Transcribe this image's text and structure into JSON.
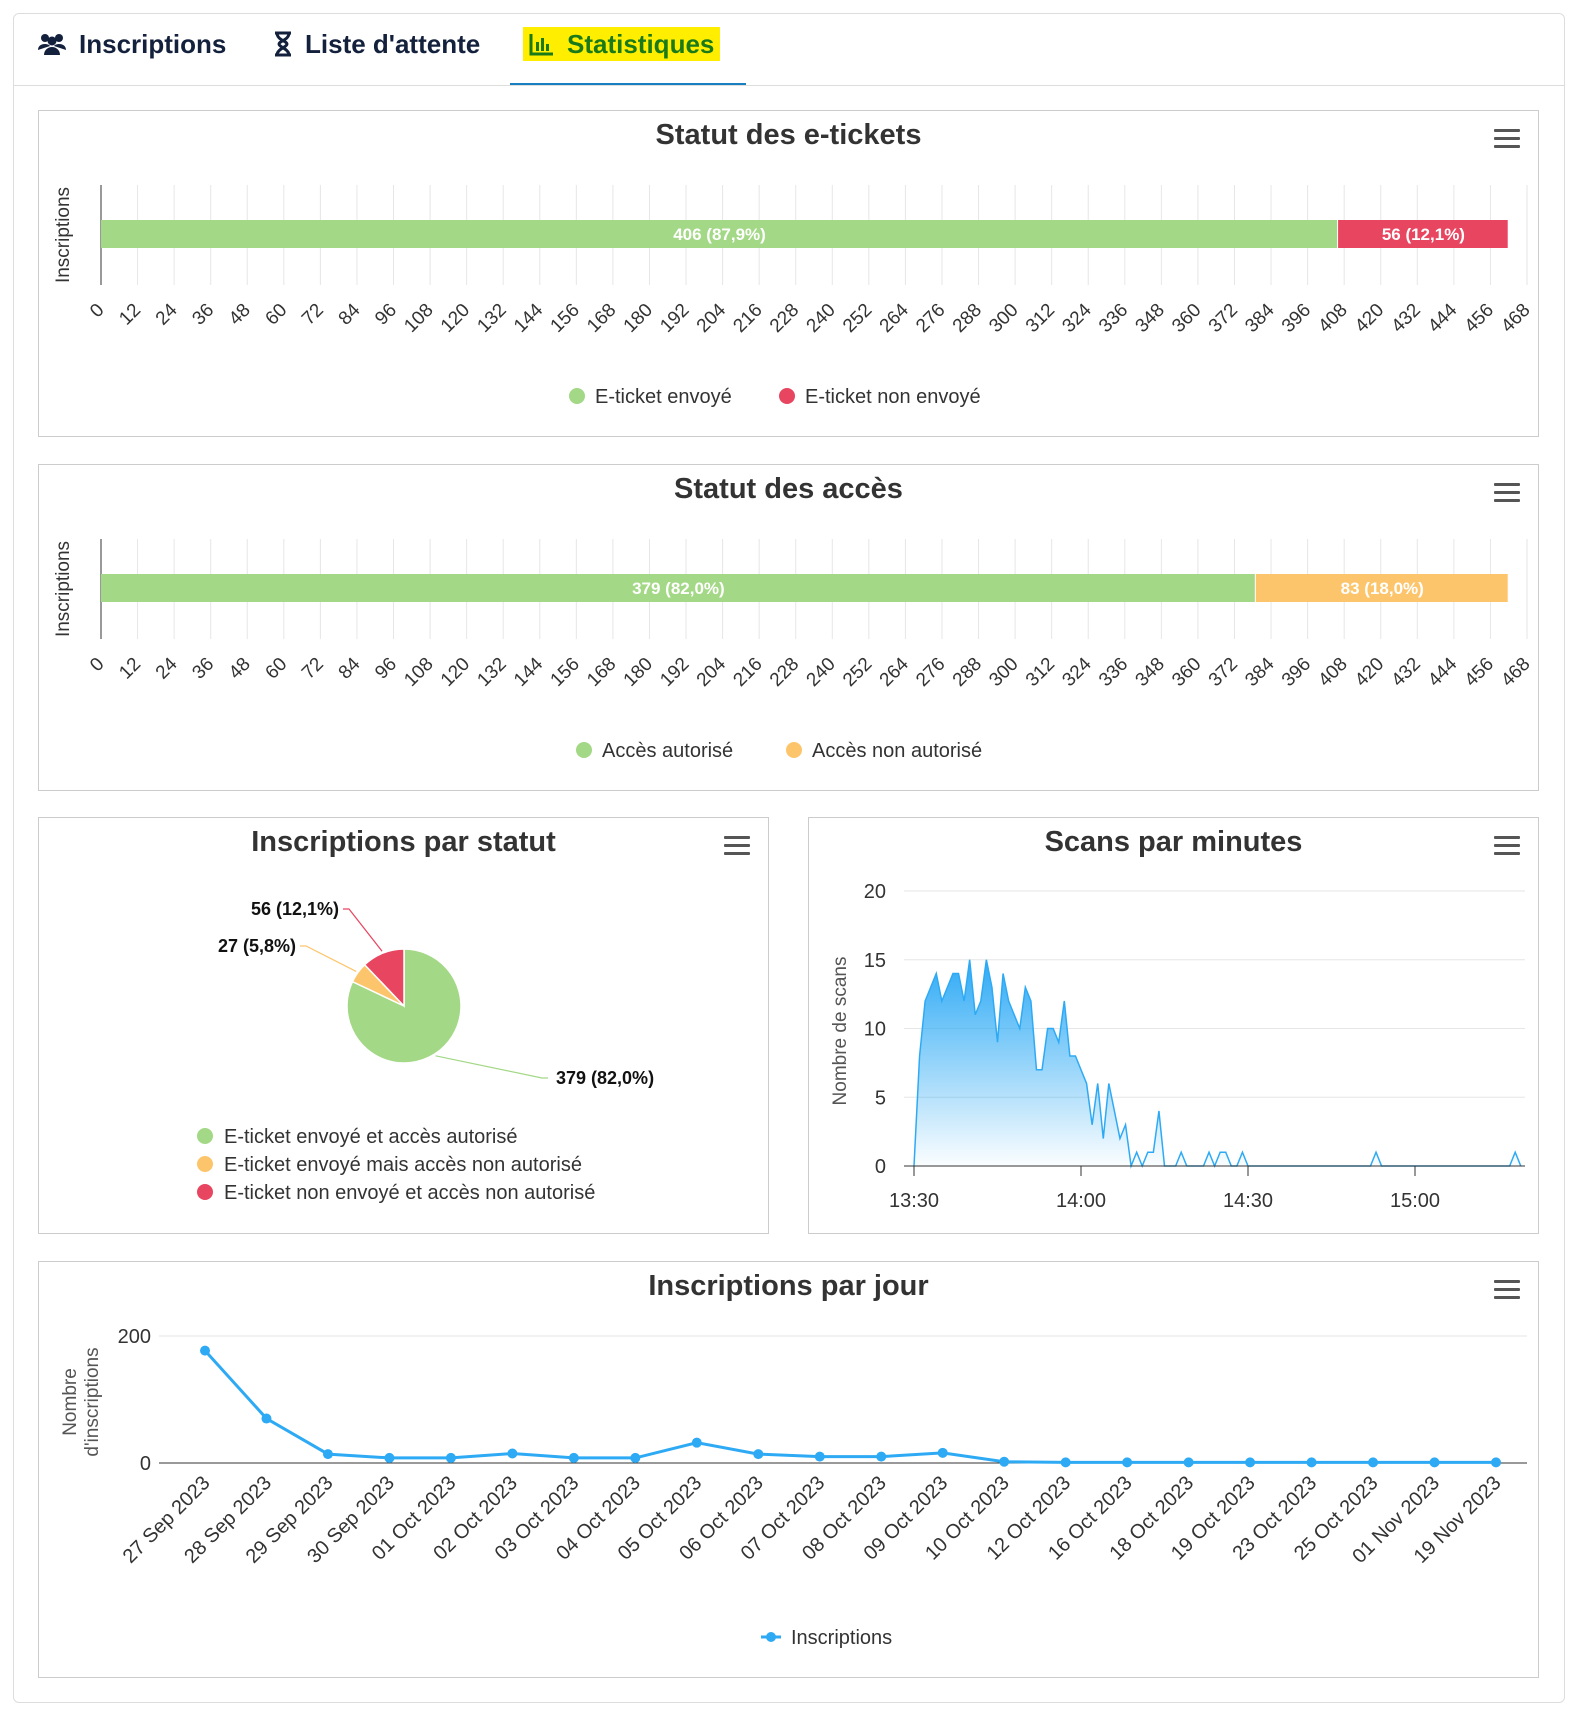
{
  "tabs": [
    {
      "label": "Inscriptions",
      "icon": "users-icon"
    },
    {
      "label": "Liste d'attente",
      "icon": "hourglass-icon"
    },
    {
      "label": "Statistiques",
      "icon": "bar-chart-icon",
      "active": true
    }
  ],
  "colors": {
    "green": "#a3d886",
    "red": "#e84560",
    "orange": "#fdc56b",
    "blue": "#2eaaf5"
  },
  "chart_data": [
    {
      "id": "etickets",
      "type": "bar",
      "orientation": "horizontal",
      "stacked": true,
      "title": "Statut des e-tickets",
      "ylabel": "Inscriptions",
      "xlim": [
        0,
        468
      ],
      "xstep": 12,
      "series": [
        {
          "name": "E-ticket envoyé",
          "value": 406,
          "label": "406 (87,9%)",
          "color": "#a3d886"
        },
        {
          "name": "E-ticket non envoyé",
          "value": 56,
          "label": "56 (12,1%)",
          "color": "#e84560"
        }
      ],
      "legend": "bottom"
    },
    {
      "id": "acces",
      "type": "bar",
      "orientation": "horizontal",
      "stacked": true,
      "title": "Statut des accès",
      "ylabel": "Inscriptions",
      "xlim": [
        0,
        468
      ],
      "xstep": 12,
      "series": [
        {
          "name": "Accès autorisé",
          "value": 379,
          "label": "379 (82,0%)",
          "color": "#a3d886"
        },
        {
          "name": "Accès non autorisé",
          "value": 83,
          "label": "83 (18,0%)",
          "color": "#fdc56b"
        }
      ],
      "legend": "bottom"
    },
    {
      "id": "statut",
      "type": "pie",
      "title": "Inscriptions par statut",
      "slices": [
        {
          "name": "E-ticket envoyé et accès autorisé",
          "value": 379,
          "label": "379 (82,0%)",
          "color": "#a3d886"
        },
        {
          "name": "E-ticket envoyé mais accès non autorisé",
          "value": 27,
          "label": "27 (5,8%)",
          "color": "#fdc56b"
        },
        {
          "name": "E-ticket non envoyé et accès non autorisé",
          "value": 56,
          "label": "56 (12,1%)",
          "color": "#e84560"
        }
      ],
      "legend": "bottom-left"
    },
    {
      "id": "scans",
      "type": "area",
      "title": "Scans par minutes",
      "ylabel": "Nombre de scans",
      "ylim": [
        0,
        20
      ],
      "yticks": [
        0,
        5,
        10,
        15,
        20
      ],
      "xticks": [
        "13:30",
        "14:00",
        "14:30",
        "15:00"
      ],
      "x_start": "13:30",
      "x_unit": "minute",
      "values": [
        0,
        8,
        12,
        13,
        14,
        12,
        13,
        14,
        14,
        12,
        15,
        11,
        12,
        15,
        13,
        9,
        14,
        12,
        11,
        10,
        13,
        12,
        7,
        7,
        10,
        10,
        9,
        12,
        8,
        8,
        7,
        6,
        3,
        6,
        2,
        6,
        4,
        2,
        3,
        0,
        1,
        0,
        1,
        1,
        4,
        0,
        0,
        0,
        1,
        0,
        0,
        0,
        0,
        1,
        0,
        1,
        1,
        0,
        0,
        1,
        0,
        0,
        0,
        0,
        0,
        0,
        0,
        0,
        0,
        0,
        0,
        0,
        0,
        0,
        0,
        0,
        0,
        0,
        0,
        0,
        0,
        0,
        0,
        1,
        0,
        0,
        0,
        0,
        0,
        0,
        0,
        0,
        0,
        0,
        0,
        0,
        0,
        0,
        0,
        0,
        0,
        0,
        0,
        0,
        0,
        0,
        0,
        0,
        1,
        0
      ]
    },
    {
      "id": "jour",
      "type": "line",
      "title": "Inscriptions par jour",
      "ylabel": "Nombre d'inscriptions",
      "ylabel_lines": [
        "Nombre",
        "d'inscriptions"
      ],
      "ylim": [
        0,
        200
      ],
      "yticks": [
        0,
        200
      ],
      "categories": [
        "27 Sep 2023",
        "28 Sep 2023",
        "29 Sep 2023",
        "30 Sep 2023",
        "01 Oct 2023",
        "02 Oct 2023",
        "03 Oct 2023",
        "04 Oct 2023",
        "05 Oct 2023",
        "06 Oct 2023",
        "07 Oct 2023",
        "08 Oct 2023",
        "09 Oct 2023",
        "10 Oct 2023",
        "12 Oct 2023",
        "16 Oct 2023",
        "18 Oct 2023",
        "19 Oct 2023",
        "23 Oct 2023",
        "25 Oct 2023",
        "01 Nov 2023",
        "19 Nov 2023"
      ],
      "series": [
        {
          "name": "Inscriptions",
          "values": [
            177,
            70,
            14,
            8,
            8,
            15,
            8,
            8,
            32,
            14,
            10,
            10,
            16,
            2,
            1,
            1,
            1,
            1,
            1,
            1,
            1,
            1
          ]
        }
      ],
      "legend": "bottom"
    }
  ]
}
